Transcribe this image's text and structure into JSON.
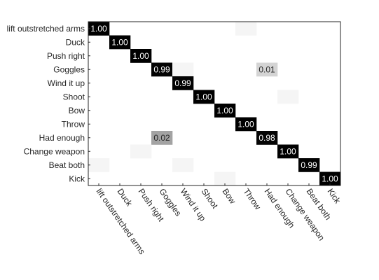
{
  "chart_data": {
    "type": "heatmap",
    "title": "",
    "xlabel": "",
    "ylabel": "",
    "categories": [
      "lift outstretched arms",
      "Duck",
      "Push right",
      "Goggles",
      "Wind it up",
      "Shoot",
      "Bow",
      "Throw",
      "Had enough",
      "Change weapon",
      "Beat both",
      "Kick"
    ],
    "x_tick_labels": [
      "lift outstretched arms",
      "Duck",
      "Push right",
      "Goggles",
      "Wind it up",
      "Shoot",
      "Bow",
      "Throw",
      "Had enough",
      "Change weapon",
      "Beat both",
      "Kick"
    ],
    "y_tick_labels": [
      "lift outstretched arms",
      "Duck",
      "Push right",
      "Goggles",
      "Wind it up",
      "Shoot",
      "Bow",
      "Throw",
      "Had enough",
      "Change weapon",
      "Beat both",
      "Kick"
    ],
    "matrix": [
      [
        1.0,
        0,
        0,
        0,
        0,
        0,
        0,
        0.002,
        0,
        0,
        0,
        0
      ],
      [
        0,
        1.0,
        0,
        0,
        0,
        0,
        0,
        0,
        0,
        0,
        0,
        0
      ],
      [
        0,
        0,
        1.0,
        0,
        0,
        0,
        0,
        0,
        0,
        0,
        0,
        0
      ],
      [
        0,
        0,
        0,
        0.99,
        0.002,
        0,
        0,
        0,
        0.01,
        0,
        0,
        0
      ],
      [
        0,
        0,
        0,
        0,
        0.99,
        0,
        0,
        0,
        0,
        0,
        0,
        0
      ],
      [
        0,
        0,
        0,
        0,
        0,
        1.0,
        0,
        0,
        0,
        0.002,
        0,
        0
      ],
      [
        0,
        0,
        0,
        0,
        0,
        0,
        1.0,
        0,
        0,
        0,
        0,
        0
      ],
      [
        0,
        0,
        0,
        0,
        0,
        0,
        0,
        1.0,
        0,
        0,
        0,
        0
      ],
      [
        0,
        0,
        0,
        0.02,
        0,
        0,
        0,
        0,
        0.98,
        0,
        0,
        0
      ],
      [
        0,
        0,
        0.002,
        0,
        0,
        0,
        0,
        0,
        0,
        1.0,
        0,
        0
      ],
      [
        0.002,
        0,
        0,
        0,
        0.002,
        0,
        0,
        0,
        0,
        0,
        0.99,
        0
      ],
      [
        0,
        0,
        0,
        0,
        0,
        0,
        0.002,
        0,
        0,
        0,
        0,
        1.0
      ]
    ],
    "cell_labels": [
      {
        "row": 0,
        "col": 0,
        "text": "1.00"
      },
      {
        "row": 1,
        "col": 1,
        "text": "1.00"
      },
      {
        "row": 2,
        "col": 2,
        "text": "1.00"
      },
      {
        "row": 3,
        "col": 3,
        "text": "0.99"
      },
      {
        "row": 3,
        "col": 8,
        "text": "0.01"
      },
      {
        "row": 4,
        "col": 4,
        "text": "0.99"
      },
      {
        "row": 5,
        "col": 5,
        "text": "1.00"
      },
      {
        "row": 6,
        "col": 6,
        "text": "1.00"
      },
      {
        "row": 7,
        "col": 7,
        "text": "1.00"
      },
      {
        "row": 8,
        "col": 3,
        "text": "0.02"
      },
      {
        "row": 8,
        "col": 8,
        "text": "0.98"
      },
      {
        "row": 9,
        "col": 9,
        "text": "1.00"
      },
      {
        "row": 10,
        "col": 10,
        "text": "0.99"
      },
      {
        "row": 11,
        "col": 11,
        "text": "1.00"
      }
    ],
    "colormap": "grayscale-inverted",
    "grid": false,
    "legend": "none",
    "colors": {
      "background": "#ffffff",
      "axis": "#262626",
      "label_dark": "#262626",
      "label_on_dark": "#ffffff",
      "label_on_light": "#262626"
    }
  }
}
